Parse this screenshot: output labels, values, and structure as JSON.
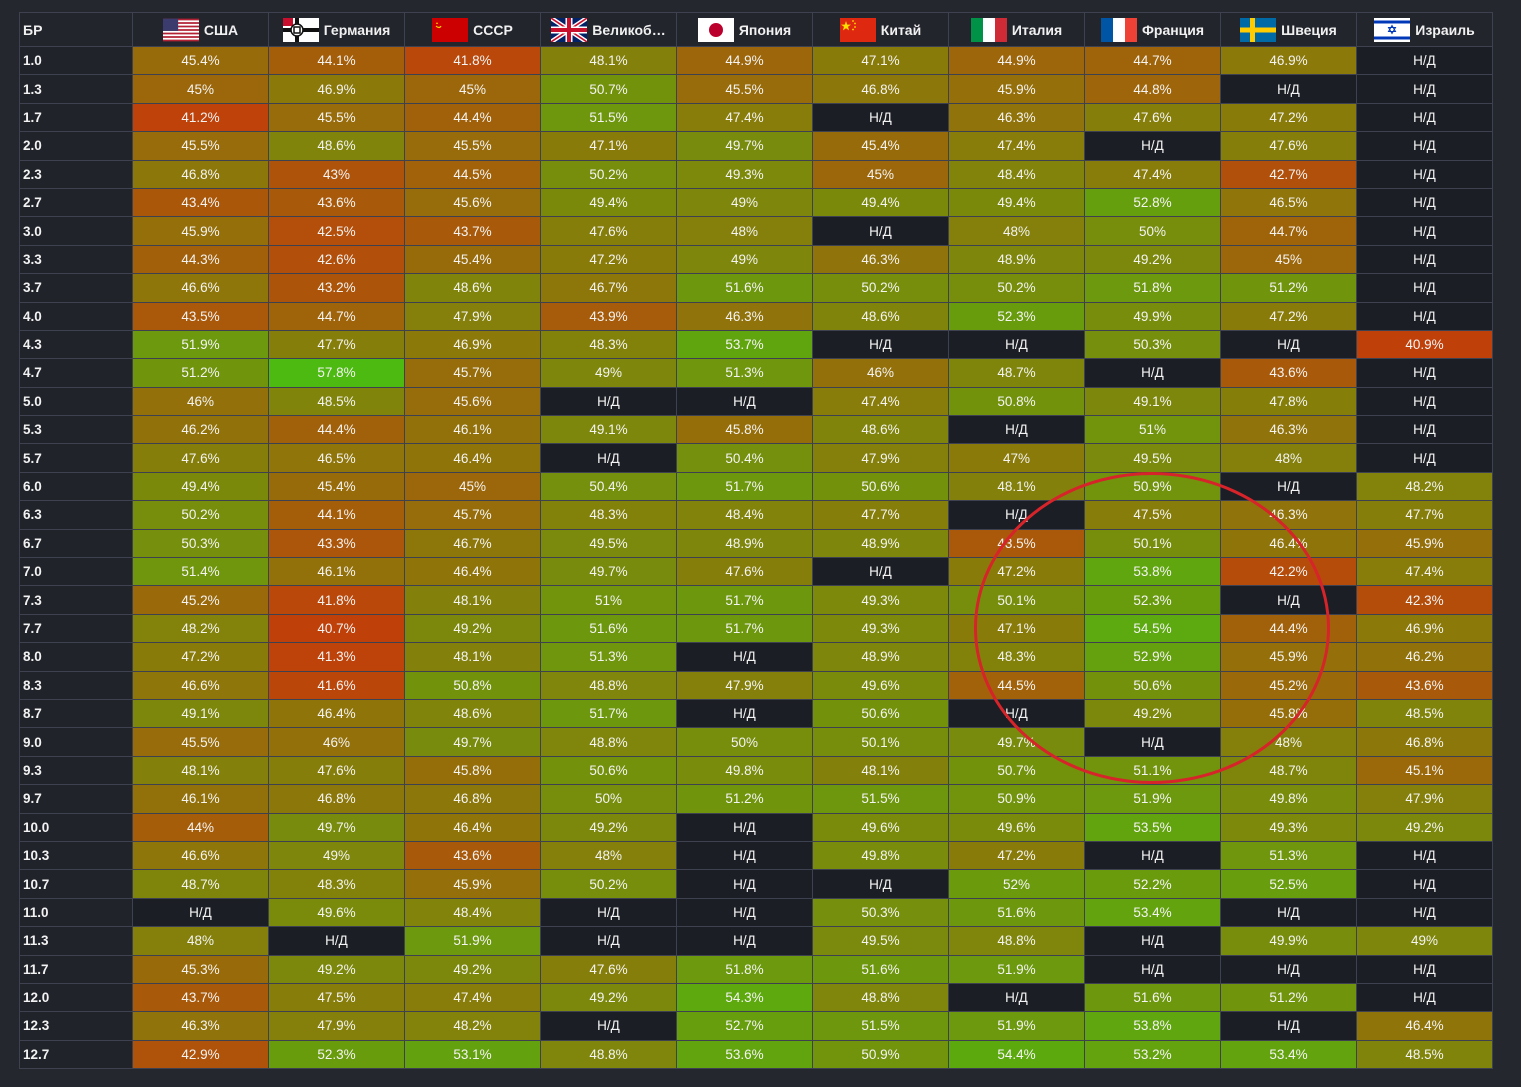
{
  "table": {
    "br_header": "БР",
    "na_label": "Н/Д",
    "nations": [
      {
        "name": "США",
        "flag": "usa-flag-icon"
      },
      {
        "name": "Германия",
        "flag": "germany-flag-icon"
      },
      {
        "name": "СССР",
        "flag": "ussr-flag-icon"
      },
      {
        "name": "Великоб…",
        "flag": "uk-flag-icon"
      },
      {
        "name": "Япония",
        "flag": "japan-flag-icon"
      },
      {
        "name": "Китай",
        "flag": "china-flag-icon"
      },
      {
        "name": "Италия",
        "flag": "italy-flag-icon"
      },
      {
        "name": "Франция",
        "flag": "france-flag-icon"
      },
      {
        "name": "Швеция",
        "flag": "sweden-flag-icon"
      },
      {
        "name": "Израиль",
        "flag": "israel-flag-icon"
      }
    ],
    "rows": [
      {
        "br": "1.0",
        "values": [
          "45.4%",
          "44.1%",
          "41.8%",
          "48.1%",
          "44.9%",
          "47.1%",
          "44.9%",
          "44.7%",
          "46.9%",
          "Н/Д"
        ]
      },
      {
        "br": "1.3",
        "values": [
          "45%",
          "46.9%",
          "45%",
          "50.7%",
          "45.5%",
          "46.8%",
          "45.9%",
          "44.8%",
          "Н/Д",
          "Н/Д"
        ]
      },
      {
        "br": "1.7",
        "values": [
          "41.2%",
          "45.5%",
          "44.4%",
          "51.5%",
          "47.4%",
          "Н/Д",
          "46.3%",
          "47.6%",
          "47.2%",
          "Н/Д"
        ]
      },
      {
        "br": "2.0",
        "values": [
          "45.5%",
          "48.6%",
          "45.5%",
          "47.1%",
          "49.7%",
          "45.4%",
          "47.4%",
          "Н/Д",
          "47.6%",
          "Н/Д"
        ]
      },
      {
        "br": "2.3",
        "values": [
          "46.8%",
          "43%",
          "44.5%",
          "50.2%",
          "49.3%",
          "45%",
          "48.4%",
          "47.4%",
          "42.7%",
          "Н/Д"
        ]
      },
      {
        "br": "2.7",
        "values": [
          "43.4%",
          "43.6%",
          "45.6%",
          "49.4%",
          "49%",
          "49.4%",
          "49.4%",
          "52.8%",
          "46.5%",
          "Н/Д"
        ]
      },
      {
        "br": "3.0",
        "values": [
          "45.9%",
          "42.5%",
          "43.7%",
          "47.6%",
          "48%",
          "Н/Д",
          "48%",
          "50%",
          "44.7%",
          "Н/Д"
        ]
      },
      {
        "br": "3.3",
        "values": [
          "44.3%",
          "42.6%",
          "45.4%",
          "47.2%",
          "49%",
          "46.3%",
          "48.9%",
          "49.2%",
          "45%",
          "Н/Д"
        ]
      },
      {
        "br": "3.7",
        "values": [
          "46.6%",
          "43.2%",
          "48.6%",
          "46.7%",
          "51.6%",
          "50.2%",
          "50.2%",
          "51.8%",
          "51.2%",
          "Н/Д"
        ]
      },
      {
        "br": "4.0",
        "values": [
          "43.5%",
          "44.7%",
          "47.9%",
          "43.9%",
          "46.3%",
          "48.6%",
          "52.3%",
          "49.9%",
          "47.2%",
          "Н/Д"
        ]
      },
      {
        "br": "4.3",
        "values": [
          "51.9%",
          "47.7%",
          "46.9%",
          "48.3%",
          "53.7%",
          "Н/Д",
          "Н/Д",
          "50.3%",
          "Н/Д",
          "40.9%"
        ]
      },
      {
        "br": "4.7",
        "values": [
          "51.2%",
          "57.8%",
          "45.7%",
          "49%",
          "51.3%",
          "46%",
          "48.7%",
          "Н/Д",
          "43.6%",
          "Н/Д"
        ]
      },
      {
        "br": "5.0",
        "values": [
          "46%",
          "48.5%",
          "45.6%",
          "Н/Д",
          "Н/Д",
          "47.4%",
          "50.8%",
          "49.1%",
          "47.8%",
          "Н/Д"
        ]
      },
      {
        "br": "5.3",
        "values": [
          "46.2%",
          "44.4%",
          "46.1%",
          "49.1%",
          "45.8%",
          "48.6%",
          "Н/Д",
          "51%",
          "46.3%",
          "Н/Д"
        ]
      },
      {
        "br": "5.7",
        "values": [
          "47.6%",
          "46.5%",
          "46.4%",
          "Н/Д",
          "50.4%",
          "47.9%",
          "47%",
          "49.5%",
          "48%",
          "Н/Д"
        ]
      },
      {
        "br": "6.0",
        "values": [
          "49.4%",
          "45.4%",
          "45%",
          "50.4%",
          "51.7%",
          "50.6%",
          "48.1%",
          "50.9%",
          "Н/Д",
          "48.2%"
        ]
      },
      {
        "br": "6.3",
        "values": [
          "50.2%",
          "44.1%",
          "45.7%",
          "48.3%",
          "48.4%",
          "47.7%",
          "Н/Д",
          "47.5%",
          "46.3%",
          "47.7%"
        ]
      },
      {
        "br": "6.7",
        "values": [
          "50.3%",
          "43.3%",
          "46.7%",
          "49.5%",
          "48.9%",
          "48.9%",
          "43.5%",
          "50.1%",
          "46.4%",
          "45.9%"
        ]
      },
      {
        "br": "7.0",
        "values": [
          "51.4%",
          "46.1%",
          "46.4%",
          "49.7%",
          "47.6%",
          "Н/Д",
          "47.2%",
          "53.8%",
          "42.2%",
          "47.4%"
        ]
      },
      {
        "br": "7.3",
        "values": [
          "45.2%",
          "41.8%",
          "48.1%",
          "51%",
          "51.7%",
          "49.3%",
          "50.1%",
          "52.3%",
          "Н/Д",
          "42.3%"
        ]
      },
      {
        "br": "7.7",
        "values": [
          "48.2%",
          "40.7%",
          "49.2%",
          "51.6%",
          "51.7%",
          "49.3%",
          "47.1%",
          "54.5%",
          "44.4%",
          "46.9%"
        ]
      },
      {
        "br": "8.0",
        "values": [
          "47.2%",
          "41.3%",
          "48.1%",
          "51.3%",
          "Н/Д",
          "48.9%",
          "48.3%",
          "52.9%",
          "45.9%",
          "46.2%"
        ]
      },
      {
        "br": "8.3",
        "values": [
          "46.6%",
          "41.6%",
          "50.8%",
          "48.8%",
          "47.9%",
          "49.6%",
          "44.5%",
          "50.6%",
          "45.2%",
          "43.6%"
        ]
      },
      {
        "br": "8.7",
        "values": [
          "49.1%",
          "46.4%",
          "48.6%",
          "51.7%",
          "Н/Д",
          "50.6%",
          "Н/Д",
          "49.2%",
          "45.8%",
          "48.5%"
        ]
      },
      {
        "br": "9.0",
        "values": [
          "45.5%",
          "46%",
          "49.7%",
          "48.8%",
          "50%",
          "50.1%",
          "49.7%",
          "Н/Д",
          "48%",
          "46.8%"
        ]
      },
      {
        "br": "9.3",
        "values": [
          "48.1%",
          "47.6%",
          "45.8%",
          "50.6%",
          "49.8%",
          "48.1%",
          "50.7%",
          "51.1%",
          "48.7%",
          "45.1%"
        ]
      },
      {
        "br": "9.7",
        "values": [
          "46.1%",
          "46.8%",
          "46.8%",
          "50%",
          "51.2%",
          "51.5%",
          "50.9%",
          "51.9%",
          "49.8%",
          "47.9%"
        ]
      },
      {
        "br": "10.0",
        "values": [
          "44%",
          "49.7%",
          "46.4%",
          "49.2%",
          "Н/Д",
          "49.6%",
          "49.6%",
          "53.5%",
          "49.3%",
          "49.2%"
        ]
      },
      {
        "br": "10.3",
        "values": [
          "46.6%",
          "49%",
          "43.6%",
          "48%",
          "Н/Д",
          "49.8%",
          "47.2%",
          "Н/Д",
          "51.3%",
          "Н/Д"
        ]
      },
      {
        "br": "10.7",
        "values": [
          "48.7%",
          "48.3%",
          "45.9%",
          "50.2%",
          "Н/Д",
          "Н/Д",
          "52%",
          "52.2%",
          "52.5%",
          "Н/Д"
        ]
      },
      {
        "br": "11.0",
        "values": [
          "Н/Д",
          "49.6%",
          "48.4%",
          "Н/Д",
          "Н/Д",
          "50.3%",
          "51.6%",
          "53.4%",
          "Н/Д",
          "Н/Д"
        ]
      },
      {
        "br": "11.3",
        "values": [
          "48%",
          "Н/Д",
          "51.9%",
          "Н/Д",
          "Н/Д",
          "49.5%",
          "48.8%",
          "Н/Д",
          "49.9%",
          "49%"
        ]
      },
      {
        "br": "11.7",
        "values": [
          "45.3%",
          "49.2%",
          "49.2%",
          "47.6%",
          "51.8%",
          "51.6%",
          "51.9%",
          "Н/Д",
          "Н/Д",
          "Н/Д"
        ]
      },
      {
        "br": "12.0",
        "values": [
          "43.7%",
          "47.5%",
          "47.4%",
          "49.2%",
          "54.3%",
          "48.8%",
          "Н/Д",
          "51.6%",
          "51.2%",
          "Н/Д"
        ]
      },
      {
        "br": "12.3",
        "values": [
          "46.3%",
          "47.9%",
          "48.2%",
          "Н/Д",
          "52.7%",
          "51.5%",
          "51.9%",
          "53.8%",
          "Н/Д",
          "46.4%"
        ]
      },
      {
        "br": "12.7",
        "values": [
          "42.9%",
          "52.3%",
          "53.1%",
          "48.8%",
          "53.6%",
          "50.9%",
          "54.4%",
          "53.2%",
          "53.4%",
          "48.5%"
        ]
      }
    ]
  },
  "colors": {
    "low": "#c0400a",
    "mid": "#8a7a0a",
    "high": "#4cba10",
    "na_bg": "#1b1e24",
    "circle": "#d6242a"
  }
}
